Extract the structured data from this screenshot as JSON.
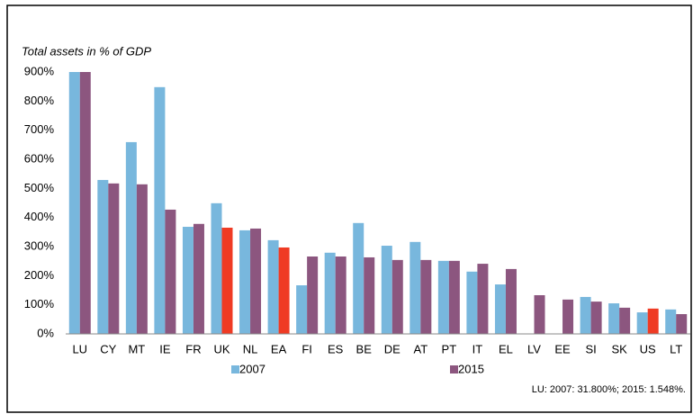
{
  "chart_data": {
    "type": "bar",
    "ylabel": "Total assets in % of GDP",
    "categories": [
      "LU",
      "CY",
      "MT",
      "IE",
      "FR",
      "UK",
      "NL",
      "EA",
      "FI",
      "ES",
      "BE",
      "DE",
      "AT",
      "PT",
      "IT",
      "EL",
      "LV",
      "EE",
      "SI",
      "SK",
      "US",
      "LT"
    ],
    "series": [
      {
        "name": "2007",
        "color": "#78b7dd",
        "values": [
          900,
          529,
          659,
          848,
          368,
          449,
          356,
          322,
          167,
          279,
          381,
          303,
          316,
          251,
          214,
          170,
          null,
          null,
          127,
          105,
          74,
          84
        ]
      },
      {
        "name": "2015",
        "color": "#8c567f",
        "colors": [
          "#8c567f",
          "#8c567f",
          "#8c567f",
          "#8c567f",
          "#8c567f",
          "#ef3b24",
          "#8c567f",
          "#ef3b24",
          "#8c567f",
          "#8c567f",
          "#8c567f",
          "#8c567f",
          "#8c567f",
          "#8c567f",
          "#8c567f",
          "#8c567f",
          "#8c567f",
          "#8c567f",
          "#8c567f",
          "#8c567f",
          "#ef3b24",
          "#8c567f"
        ],
        "values": [
          900,
          517,
          514,
          427,
          378,
          365,
          362,
          297,
          266,
          266,
          263,
          254,
          254,
          251,
          241,
          223,
          133,
          118,
          111,
          90,
          87,
          68
        ]
      }
    ],
    "ylim": [
      0,
      900
    ],
    "yticks": [
      {
        "value": 0,
        "label": "0%"
      },
      {
        "value": 100,
        "label": "100%"
      },
      {
        "value": 200,
        "label": "200%"
      },
      {
        "value": 300,
        "label": "300%"
      },
      {
        "value": 400,
        "label": "400%"
      },
      {
        "value": 500,
        "label": "500%"
      },
      {
        "value": 600,
        "label": "600%"
      },
      {
        "value": 700,
        "label": "700%"
      },
      {
        "value": 800,
        "label": "800%"
      },
      {
        "value": 900,
        "label": "900%"
      }
    ],
    "grid": false,
    "legend": "bottom",
    "note": "LU: 2007: 31.800%; 2015: 1.548%."
  }
}
